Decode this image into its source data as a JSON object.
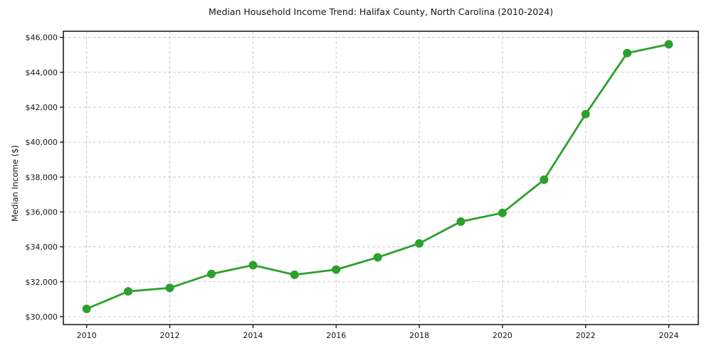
{
  "chart_data": {
    "type": "line",
    "title": "Median Household Income Trend: Halifax County, North Carolina (2010-2024)",
    "xlabel": "",
    "ylabel": "Median Income ($)",
    "series": [
      {
        "name": "Median household income",
        "x": [
          2010,
          2011,
          2012,
          2013,
          2014,
          2015,
          2016,
          2017,
          2018,
          2019,
          2020,
          2021,
          2022,
          2023,
          2024
        ],
        "values": [
          30450,
          31450,
          31650,
          32450,
          32950,
          32400,
          32700,
          33400,
          34200,
          35450,
          35950,
          37850,
          41600,
          45100,
          45600
        ]
      }
    ],
    "x_ticks": [
      2010,
      2012,
      2014,
      2016,
      2018,
      2020,
      2022,
      2024
    ],
    "x_tick_labels": [
      "2010",
      "2012",
      "2014",
      "2016",
      "2018",
      "2020",
      "2022",
      "2024"
    ],
    "y_ticks": [
      30000,
      32000,
      34000,
      36000,
      38000,
      40000,
      42000,
      44000,
      46000
    ],
    "y_tick_labels": [
      "$30,000",
      "$32,000",
      "$34,000",
      "$36,000",
      "$38,000",
      "$40,000",
      "$42,000",
      "$44,000",
      "$46,000"
    ],
    "xlim": [
      2009.44,
      2024.71
    ],
    "ylim": [
      29550,
      46350
    ],
    "grid": "both-dashed",
    "legend": "none",
    "colors": {
      "line": "#2ca02c",
      "marker": "#2ca02c",
      "grid": "#cccccc",
      "spine": "#000000",
      "background": "#ffffff",
      "text": "#151515"
    }
  }
}
